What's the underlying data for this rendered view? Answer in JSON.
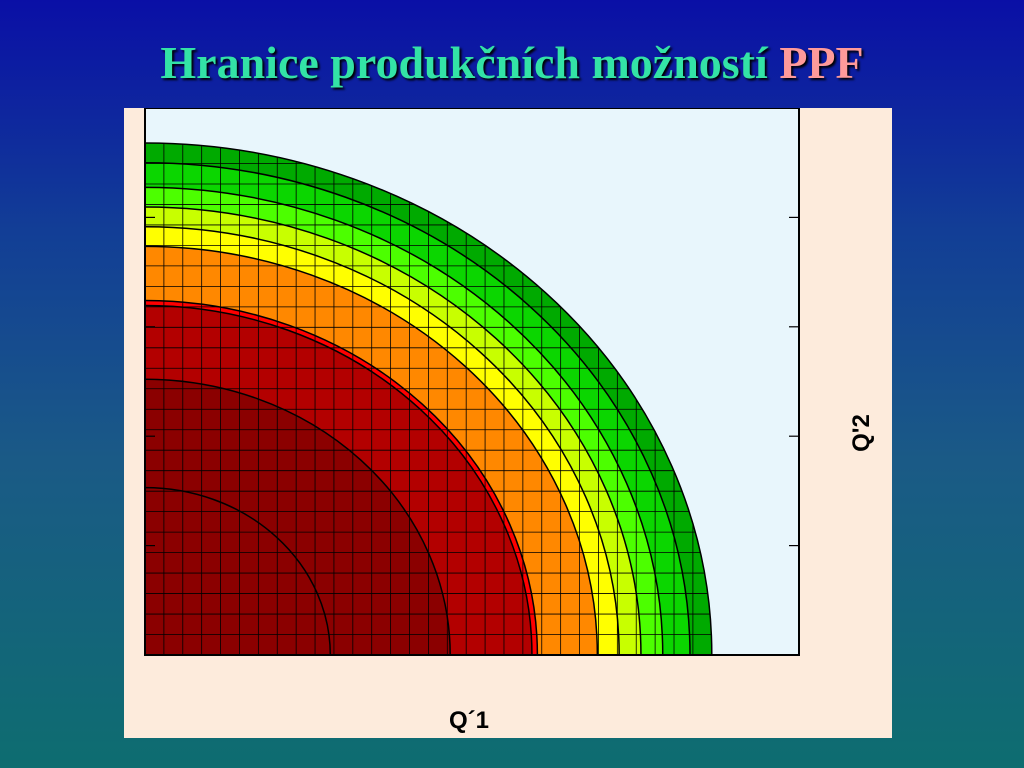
{
  "slide": {
    "title_main": "Hranice produkčních možností ",
    "title_accent": "PPF"
  },
  "colors": {
    "title_main": "#33e3a6",
    "title_accent": "#ff9a9a",
    "plot_background": "#e8f6fc",
    "figure_background": "#fdebdc"
  },
  "chart_data": {
    "type": "area",
    "description_type": "contour",
    "title": "",
    "xlabel": "Q´1",
    "ylabel": "Q'2",
    "xlim": [
      0,
      6
    ],
    "ylim": [
      0,
      5
    ],
    "grid": true,
    "grid_cells": {
      "x": 30,
      "y": 25
    },
    "ticks_shown": false,
    "series": [
      {
        "radius": 1.7,
        "color": "#8b0000"
      },
      {
        "radius": 2.8,
        "color": "#8b0000"
      },
      {
        "radius": 3.55,
        "color": "#b30000"
      },
      {
        "radius": 3.6,
        "color": "#ff0000"
      },
      {
        "radius": 4.15,
        "color": "#ff8800"
      },
      {
        "radius": 4.35,
        "color": "#ffff00"
      },
      {
        "radius": 4.55,
        "color": "#c8ff00"
      },
      {
        "radius": 4.75,
        "color": "#4cff00"
      },
      {
        "radius": 5.0,
        "color": "#0bd600"
      },
      {
        "radius": 5.2,
        "color": "#00aa00"
      }
    ],
    "ellipse_ratio_y": 0.9
  }
}
